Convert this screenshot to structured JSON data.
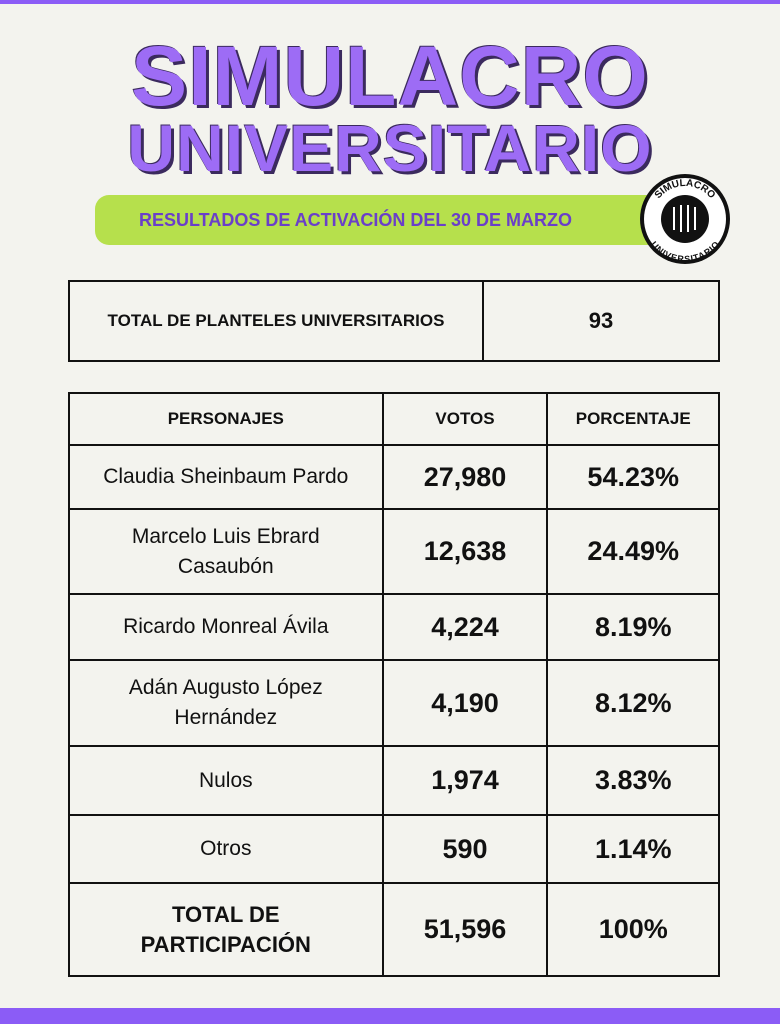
{
  "header": {
    "title_line1": "SIMULACRO",
    "title_line2": "UNIVERSITARIO",
    "banner": "RESULTADOS DE ACTIVACIÓN DEL 30 DE MARZO",
    "logo_top": "SIMULACRO",
    "logo_bottom": "UNIVERSITARIO"
  },
  "summary": {
    "label": "TOTAL DE PLANTELES UNIVERSITARIOS",
    "value": "93"
  },
  "table": {
    "headers": [
      "PERSONAJES",
      "VOTOS",
      "PORCENTAJE"
    ],
    "rows": [
      [
        "Claudia Sheinbaum Pardo",
        "27,980",
        "54.23%"
      ],
      [
        "Marcelo Luis Ebrard Casaubón",
        "12,638",
        "24.49%"
      ],
      [
        "Ricardo Monreal Ávila",
        "4,224",
        "8.19%"
      ],
      [
        "Adán Augusto López Hernández",
        "4,190",
        "8.12%"
      ],
      [
        "Nulos",
        "1,974",
        "3.83%"
      ],
      [
        "Otros",
        "590",
        "1.14%"
      ]
    ],
    "total": [
      "TOTAL DE PARTICIPACIÓN",
      "51,596",
      "100%"
    ]
  }
}
